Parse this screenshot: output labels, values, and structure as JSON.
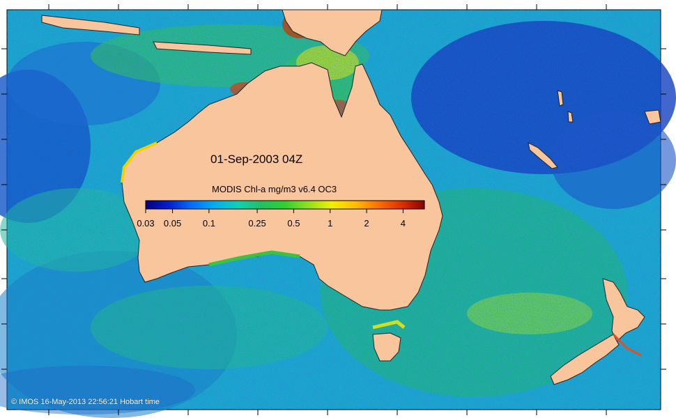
{
  "map": {
    "date": "01-Sep-2003 04Z",
    "product_title": "MODIS Chl-a mg/m3 v6.4 OC3",
    "credit": "© IMOS 16-May-2013 22:56:21 Hobart time",
    "land_color": "#f9c59c",
    "ocean_base_color": "#1a9fd0"
  },
  "colorbar": {
    "colors": [
      "#00007f",
      "#0020d0",
      "#0070ff",
      "#00b0f0",
      "#10d0b0",
      "#20c060",
      "#30d030",
      "#90e020",
      "#f0f000",
      "#ffc000",
      "#ff7000",
      "#e03000",
      "#8a0000"
    ],
    "ticks": [
      {
        "label": "0.03",
        "value": 0.03
      },
      {
        "label": "0.05",
        "value": 0.05
      },
      {
        "label": "0.1",
        "value": 0.1
      },
      {
        "label": "0.25",
        "value": 0.25
      },
      {
        "label": "0.5",
        "value": 0.5
      },
      {
        "label": "1",
        "value": 1
      },
      {
        "label": "2",
        "value": 2
      },
      {
        "label": "4",
        "value": 4
      }
    ]
  }
}
